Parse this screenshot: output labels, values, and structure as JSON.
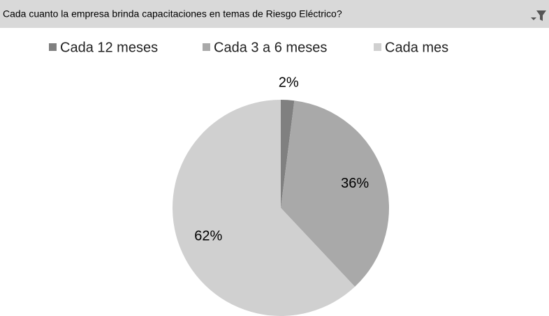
{
  "chart_data": {
    "type": "pie",
    "title": "Cada cuanto la empresa brinda capacitaciones en temas de Riesgo Eléctrico?",
    "categories": [
      "Cada 12 meses",
      "Cada 3 a 6 meses",
      "Cada mes"
    ],
    "values": [
      2,
      36,
      62
    ],
    "value_labels": [
      "2%",
      "36%",
      "62%"
    ],
    "colors": [
      "#808080",
      "#a9a9a9",
      "#d0d0d0"
    ]
  }
}
